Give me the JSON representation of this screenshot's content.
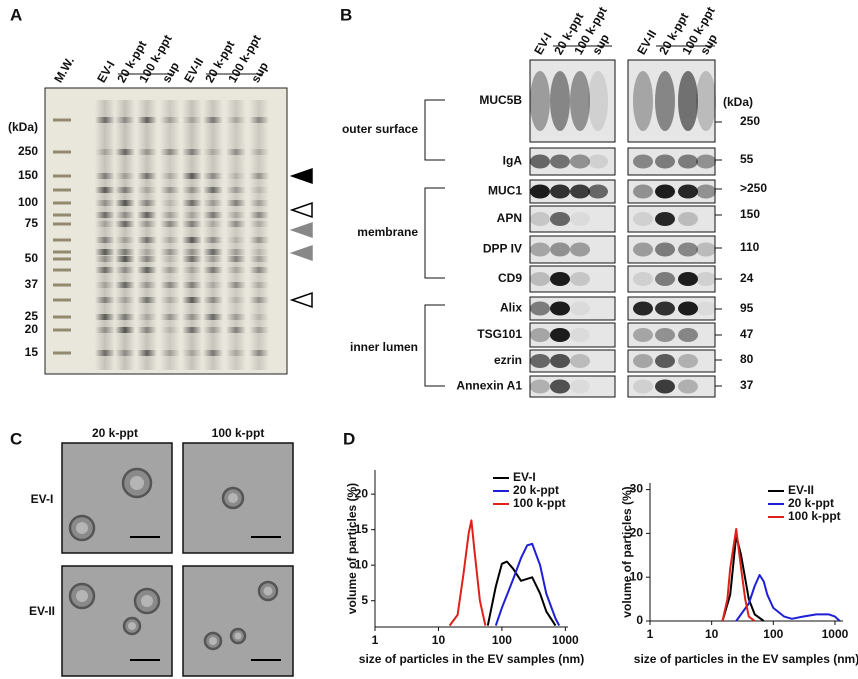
{
  "panel_labels": [
    "A",
    "B",
    "C",
    "D"
  ],
  "gel": {
    "kda_label": "(kDa)",
    "lanes": [
      "M.W.",
      "EV-I",
      "20 k-ppt",
      "100 k-ppt",
      "sup",
      "EV-II",
      "20 k-ppt",
      "100 k-ppt",
      "sup"
    ],
    "markers": [
      "250",
      "150",
      "100",
      "75",
      "50",
      "37",
      "25",
      "20",
      "15"
    ]
  },
  "blot": {
    "kda_label": "(kDa)",
    "lanes": [
      "EV-I",
      "20 k-ppt",
      "100 k-ppt",
      "sup",
      "EV-II",
      "20 k-ppt",
      "100 k-ppt",
      "sup"
    ],
    "groups": [
      "outer surface",
      "membrane",
      "inner lumen"
    ],
    "rows": [
      {
        "protein": "MUC5B",
        "kda": "250"
      },
      {
        "protein": "IgA",
        "kda": "55"
      },
      {
        "protein": "MUC1",
        "kda": ">250"
      },
      {
        "protein": "APN",
        "kda": "150"
      },
      {
        "protein": "DPP IV",
        "kda": "110"
      },
      {
        "protein": "CD9",
        "kda": "24"
      },
      {
        "protein": "Alix",
        "kda": "95"
      },
      {
        "protein": "TSG101",
        "kda": "47"
      },
      {
        "protein": "ezrin",
        "kda": "80"
      },
      {
        "protein": "Annexin A1",
        "kda": "37"
      }
    ]
  },
  "tem": {
    "columns": [
      "20 k-ppt",
      "100 k-ppt"
    ],
    "rows": [
      "EV-I",
      "EV-II"
    ]
  },
  "chart_data": [
    {
      "type": "line",
      "x_label": "size of particles in the EV samples (nm)",
      "y_label": "volume of particles (%)",
      "log_x": true,
      "xlim": [
        1,
        1100
      ],
      "ylim": [
        1.3,
        23.4
      ],
      "xticks": [
        1,
        10,
        100,
        1000
      ],
      "yticks": [
        5,
        10,
        15,
        20
      ],
      "legend": "top-right",
      "series": [
        {
          "name": "EV-I",
          "color": "#000000",
          "x": [
            60,
            80,
            100,
            120,
            150,
            200,
            300,
            400,
            500,
            700
          ],
          "values": [
            1.5,
            7,
            10.2,
            10.5,
            9.5,
            7.8,
            8.3,
            6,
            3.5,
            1.5
          ]
        },
        {
          "name": "20 k-ppt",
          "color": "#1f1fd6",
          "x": [
            80,
            100,
            150,
            200,
            250,
            300,
            400,
            500,
            700,
            800
          ],
          "values": [
            1.5,
            4,
            8,
            11,
            12.8,
            13,
            10,
            6,
            2.5,
            1.5
          ]
        },
        {
          "name": "100 k-ppt",
          "color": "#e0201b",
          "x": [
            15,
            20,
            25,
            30,
            33,
            37,
            45,
            55
          ],
          "values": [
            1.5,
            3,
            9,
            14.5,
            16.3,
            12,
            5,
            1.5
          ]
        }
      ]
    },
    {
      "type": "line",
      "x_label": "size of particles in the EV samples (nm)",
      "y_label": "volume of particles (%)",
      "log_x": true,
      "xlim": [
        1,
        1350
      ],
      "ylim": [
        0,
        31.5
      ],
      "xticks": [
        1,
        10,
        100,
        1000
      ],
      "yticks": [
        0,
        10,
        20,
        30
      ],
      "legend": "top-right",
      "series": [
        {
          "name": "EV-II",
          "color": "#000000",
          "x": [
            15,
            20,
            25,
            30,
            40,
            50,
            70
          ],
          "values": [
            0,
            6,
            19.5,
            15,
            5,
            1.5,
            0
          ]
        },
        {
          "name": "20 k-ppt",
          "color": "#1f1fd6",
          "x": [
            25,
            40,
            50,
            60,
            70,
            80,
            100,
            150,
            200,
            300,
            500,
            800,
            1000,
            1200
          ],
          "values": [
            0,
            4,
            8,
            10.5,
            9,
            6,
            3,
            1,
            0.5,
            1,
            1.5,
            1.5,
            1,
            0
          ]
        },
        {
          "name": "100 k-ppt",
          "color": "#e0201b",
          "x": [
            15,
            18,
            20,
            25,
            30,
            35,
            40,
            50
          ],
          "values": [
            0,
            5,
            12,
            21,
            12,
            5,
            1,
            0
          ]
        }
      ]
    }
  ]
}
